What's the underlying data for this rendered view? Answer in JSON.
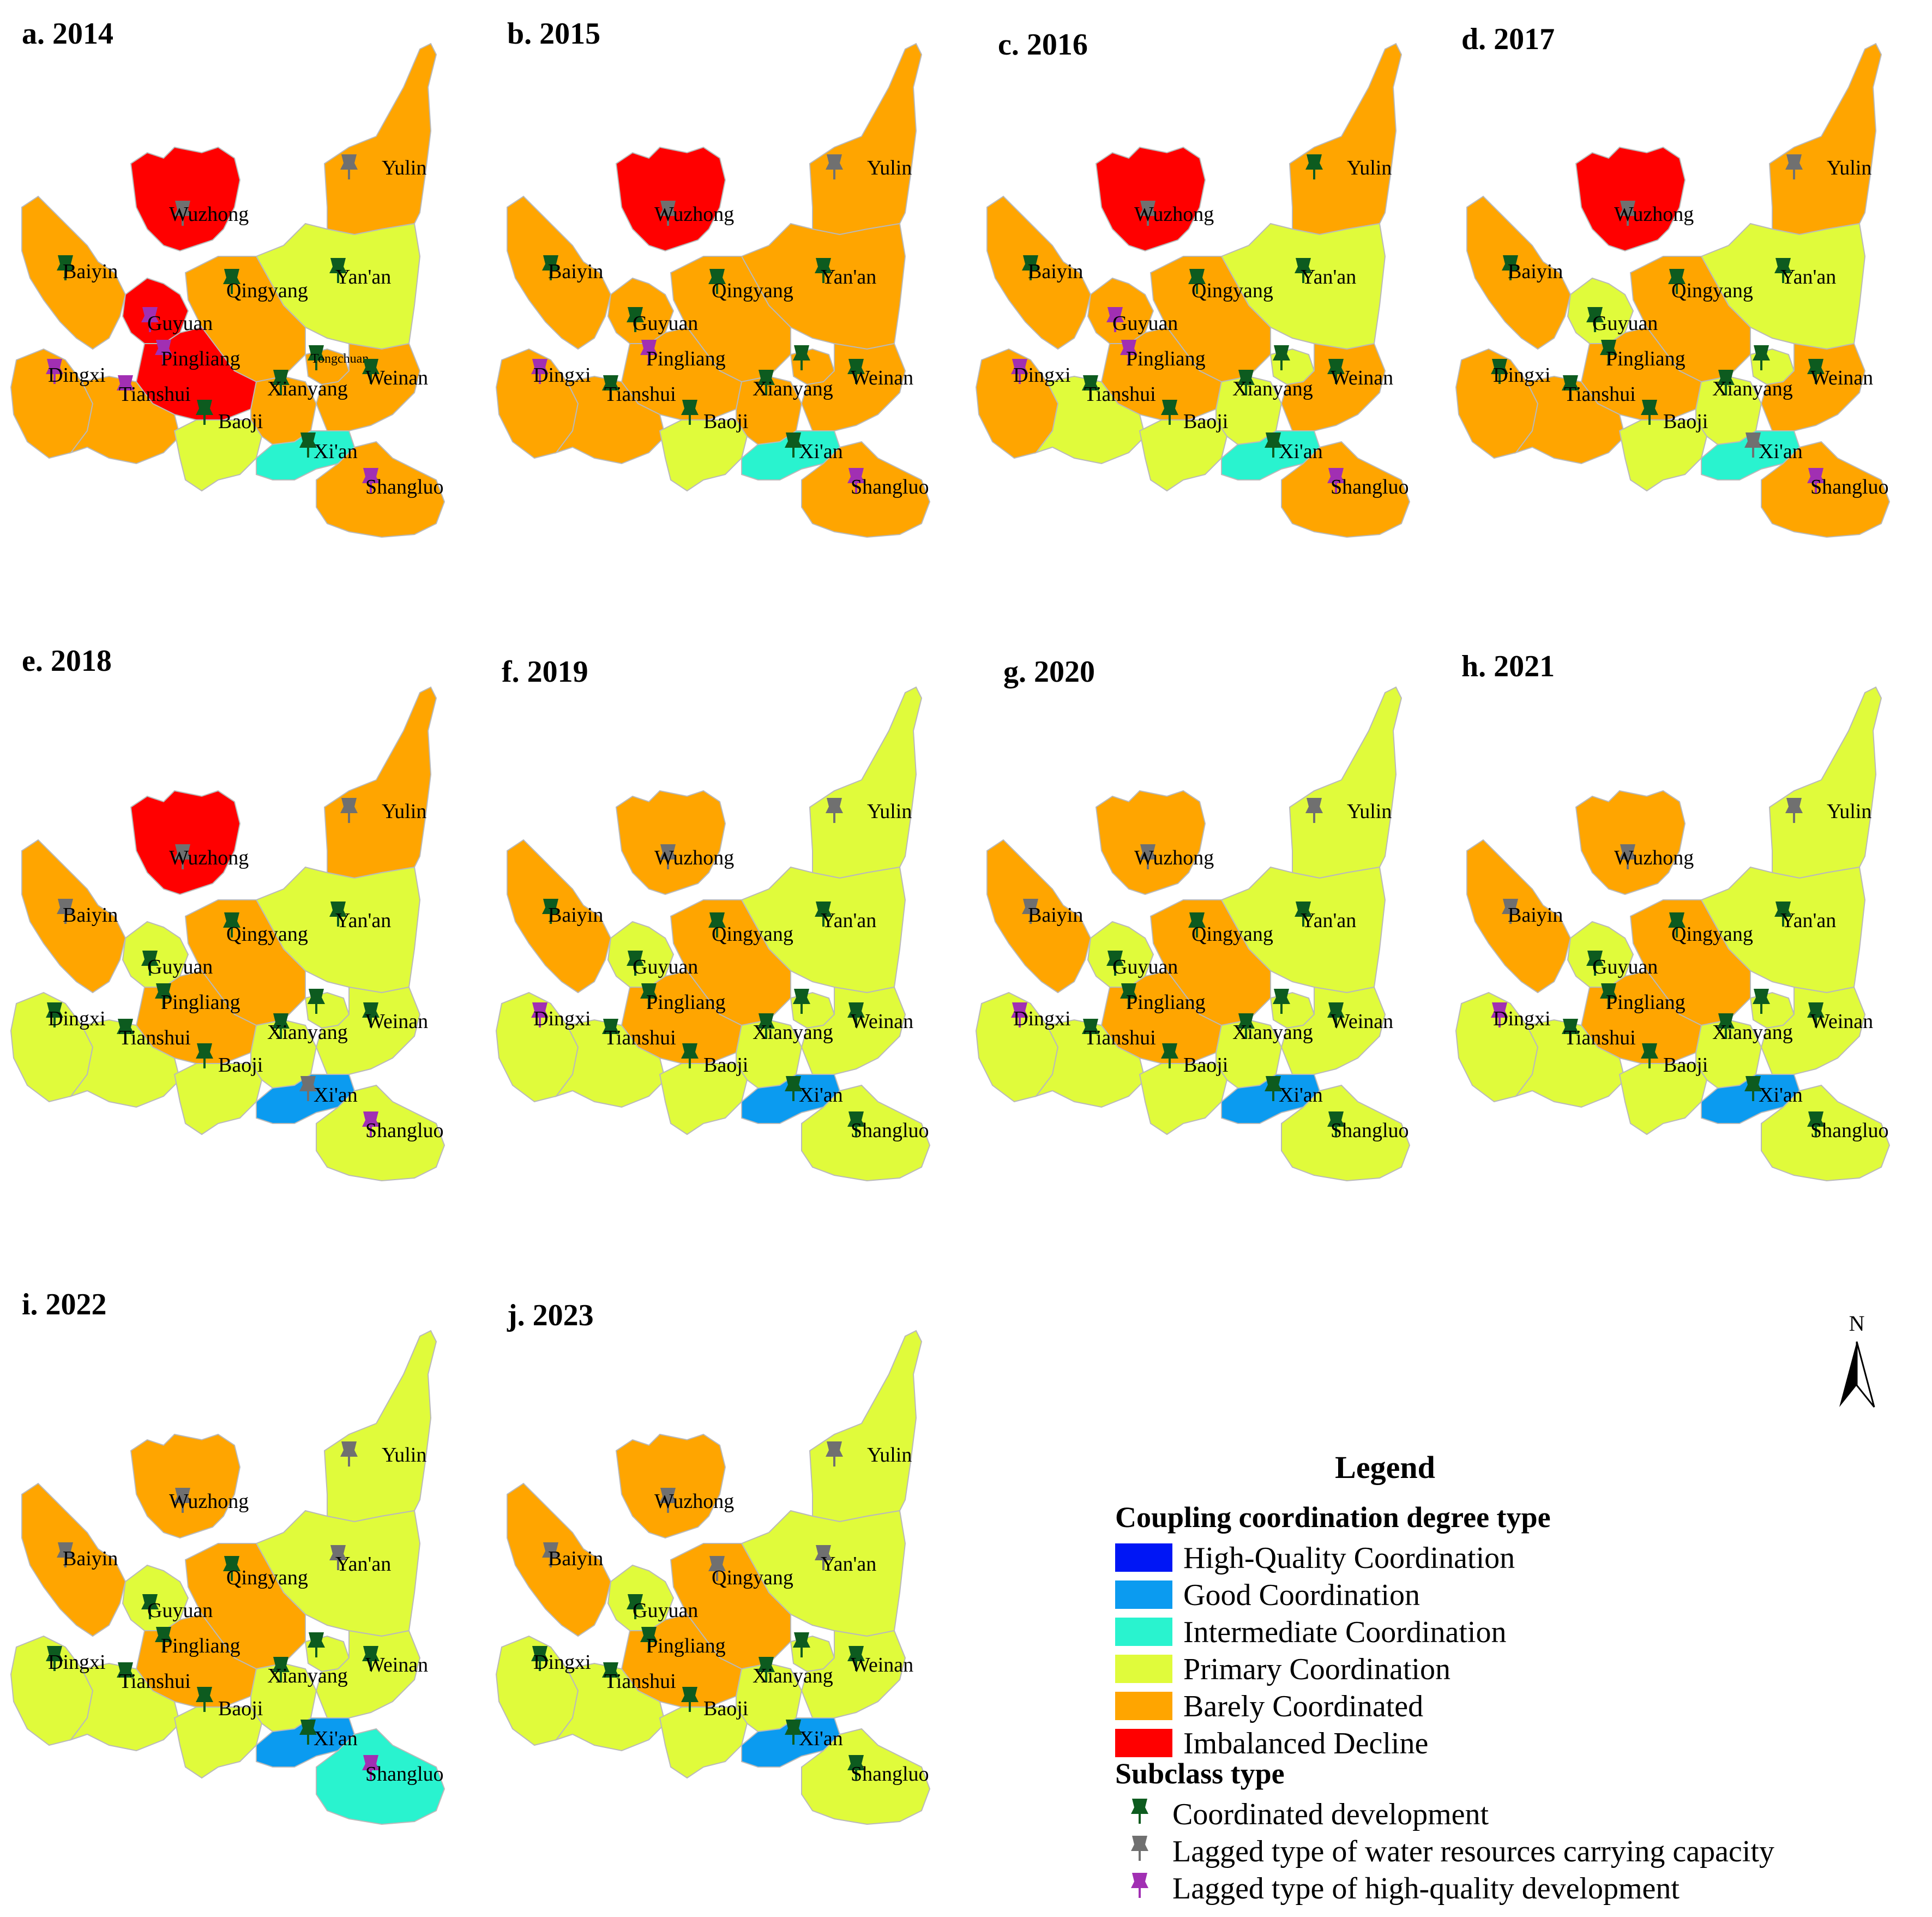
{
  "colors": {
    "imbalanced_decline": "#ff0000",
    "barely_coordinated": "#ffa500",
    "primary_coordination": "#e0fb3b",
    "intermediate_coordination": "#29f3cf",
    "good_coordination": "#0b9bf0",
    "high_quality_coordination": "#0016f5",
    "marker_coordinated": "#0d5b1f",
    "marker_water_lag": "#707070",
    "marker_hq_lag": "#a12fb3"
  },
  "panels": [
    {
      "id": "a",
      "title": "a. 2014",
      "fills": {
        "wuzhong": "imbalanced_decline",
        "yulin": "barely_coordinated",
        "yanan": "primary_coordination",
        "baiyin": "barely_coordinated",
        "qingyang": "barely_coordinated",
        "guyuan": "imbalanced_decline",
        "pingliang": "imbalanced_decline",
        "dingxi": "barely_coordinated",
        "tianshui": "barely_coordinated",
        "baoji": "primary_coordination",
        "xianyang": "barely_coordinated",
        "weinan": "barely_coordinated",
        "tongchuan": "barely_coordinated",
        "xian": "intermediate_coordination",
        "shangluo": "barely_coordinated"
      },
      "markers": {
        "yulin": "water",
        "wuzhong": "water",
        "baiyin": "coord",
        "qingyang": "coord",
        "yanan": "coord",
        "guyuan": "hq",
        "pingliang": "hq",
        "dingxi": "hq",
        "tianshui": "hq",
        "baoji": "coord",
        "xianyang": "coord",
        "tongchuan": "coord",
        "weinan": "coord",
        "xian": "coord",
        "shangluo": "hq"
      }
    },
    {
      "id": "b",
      "title": "b. 2015",
      "fills": {
        "wuzhong": "imbalanced_decline",
        "yulin": "barely_coordinated",
        "yanan": "barely_coordinated",
        "baiyin": "barely_coordinated",
        "qingyang": "barely_coordinated",
        "guyuan": "barely_coordinated",
        "pingliang": "barely_coordinated",
        "dingxi": "barely_coordinated",
        "tianshui": "barely_coordinated",
        "baoji": "primary_coordination",
        "xianyang": "barely_coordinated",
        "weinan": "barely_coordinated",
        "tongchuan": "barely_coordinated",
        "xian": "intermediate_coordination",
        "shangluo": "barely_coordinated"
      },
      "markers": {
        "yulin": "water",
        "wuzhong": "water",
        "baiyin": "coord",
        "qingyang": "coord",
        "yanan": "coord",
        "guyuan": "coord",
        "pingliang": "hq",
        "dingxi": "hq",
        "tianshui": "coord",
        "baoji": "coord",
        "xianyang": "coord",
        "tongchuan": "coord",
        "weinan": "coord",
        "xian": "coord",
        "shangluo": "hq"
      }
    },
    {
      "id": "c",
      "title": "c. 2016",
      "fills": {
        "wuzhong": "imbalanced_decline",
        "yulin": "barely_coordinated",
        "yanan": "primary_coordination",
        "baiyin": "barely_coordinated",
        "qingyang": "barely_coordinated",
        "guyuan": "barely_coordinated",
        "pingliang": "barely_coordinated",
        "dingxi": "barely_coordinated",
        "tianshui": "primary_coordination",
        "baoji": "primary_coordination",
        "xianyang": "primary_coordination",
        "weinan": "barely_coordinated",
        "tongchuan": "primary_coordination",
        "xian": "intermediate_coordination",
        "shangluo": "barely_coordinated"
      },
      "markers": {
        "yulin": "coord",
        "wuzhong": "water",
        "baiyin": "coord",
        "qingyang": "coord",
        "yanan": "coord",
        "guyuan": "hq",
        "pingliang": "hq",
        "dingxi": "hq",
        "tianshui": "coord",
        "baoji": "coord",
        "xianyang": "coord",
        "tongchuan": "coord",
        "weinan": "coord",
        "xian": "coord",
        "shangluo": "hq"
      }
    },
    {
      "id": "d",
      "title": "d. 2017",
      "fills": {
        "wuzhong": "imbalanced_decline",
        "yulin": "barely_coordinated",
        "yanan": "primary_coordination",
        "baiyin": "barely_coordinated",
        "qingyang": "barely_coordinated",
        "guyuan": "primary_coordination",
        "pingliang": "barely_coordinated",
        "dingxi": "barely_coordinated",
        "tianshui": "barely_coordinated",
        "baoji": "primary_coordination",
        "xianyang": "primary_coordination",
        "weinan": "barely_coordinated",
        "tongchuan": "primary_coordination",
        "xian": "intermediate_coordination",
        "shangluo": "barely_coordinated"
      },
      "markers": {
        "yulin": "water",
        "wuzhong": "water",
        "baiyin": "coord",
        "qingyang": "coord",
        "yanan": "coord",
        "guyuan": "coord",
        "pingliang": "coord",
        "dingxi": "coord",
        "tianshui": "coord",
        "baoji": "coord",
        "xianyang": "coord",
        "tongchuan": "coord",
        "weinan": "coord",
        "xian": "water",
        "shangluo": "hq"
      }
    },
    {
      "id": "e",
      "title": "e. 2018",
      "fills": {
        "wuzhong": "imbalanced_decline",
        "yulin": "barely_coordinated",
        "yanan": "primary_coordination",
        "baiyin": "barely_coordinated",
        "qingyang": "barely_coordinated",
        "guyuan": "primary_coordination",
        "pingliang": "barely_coordinated",
        "dingxi": "primary_coordination",
        "tianshui": "primary_coordination",
        "baoji": "primary_coordination",
        "xianyang": "primary_coordination",
        "weinan": "primary_coordination",
        "tongchuan": "primary_coordination",
        "xian": "good_coordination",
        "shangluo": "primary_coordination"
      },
      "markers": {
        "yulin": "water",
        "wuzhong": "water",
        "baiyin": "water",
        "qingyang": "coord",
        "yanan": "coord",
        "guyuan": "coord",
        "pingliang": "coord",
        "dingxi": "coord",
        "tianshui": "coord",
        "baoji": "coord",
        "xianyang": "coord",
        "tongchuan": "coord",
        "weinan": "coord",
        "xian": "water",
        "shangluo": "hq"
      }
    },
    {
      "id": "f",
      "title": "f. 2019",
      "fills": {
        "wuzhong": "barely_coordinated",
        "yulin": "primary_coordination",
        "yanan": "primary_coordination",
        "baiyin": "barely_coordinated",
        "qingyang": "barely_coordinated",
        "guyuan": "primary_coordination",
        "pingliang": "barely_coordinated",
        "dingxi": "primary_coordination",
        "tianshui": "primary_coordination",
        "baoji": "primary_coordination",
        "xianyang": "primary_coordination",
        "weinan": "primary_coordination",
        "tongchuan": "primary_coordination",
        "xian": "good_coordination",
        "shangluo": "primary_coordination"
      },
      "markers": {
        "yulin": "water",
        "wuzhong": "water",
        "baiyin": "coord",
        "qingyang": "coord",
        "yanan": "coord",
        "guyuan": "coord",
        "pingliang": "coord",
        "dingxi": "hq",
        "tianshui": "coord",
        "baoji": "coord",
        "xianyang": "coord",
        "tongchuan": "coord",
        "weinan": "coord",
        "xian": "coord",
        "shangluo": "coord"
      }
    },
    {
      "id": "g",
      "title": "g. 2020",
      "fills": {
        "wuzhong": "barely_coordinated",
        "yulin": "primary_coordination",
        "yanan": "primary_coordination",
        "baiyin": "barely_coordinated",
        "qingyang": "barely_coordinated",
        "guyuan": "primary_coordination",
        "pingliang": "barely_coordinated",
        "dingxi": "primary_coordination",
        "tianshui": "primary_coordination",
        "baoji": "primary_coordination",
        "xianyang": "primary_coordination",
        "weinan": "primary_coordination",
        "tongchuan": "primary_coordination",
        "xian": "good_coordination",
        "shangluo": "primary_coordination"
      },
      "markers": {
        "yulin": "water",
        "wuzhong": "water",
        "baiyin": "water",
        "qingyang": "coord",
        "yanan": "coord",
        "guyuan": "coord",
        "pingliang": "coord",
        "dingxi": "hq",
        "tianshui": "coord",
        "baoji": "coord",
        "xianyang": "coord",
        "tongchuan": "coord",
        "weinan": "coord",
        "xian": "coord",
        "shangluo": "coord"
      }
    },
    {
      "id": "h",
      "title": "h. 2021",
      "fills": {
        "wuzhong": "barely_coordinated",
        "yulin": "primary_coordination",
        "yanan": "primary_coordination",
        "baiyin": "barely_coordinated",
        "qingyang": "barely_coordinated",
        "guyuan": "primary_coordination",
        "pingliang": "barely_coordinated",
        "dingxi": "primary_coordination",
        "tianshui": "primary_coordination",
        "baoji": "primary_coordination",
        "xianyang": "primary_coordination",
        "weinan": "primary_coordination",
        "tongchuan": "primary_coordination",
        "xian": "good_coordination",
        "shangluo": "primary_coordination"
      },
      "markers": {
        "yulin": "water",
        "wuzhong": "water",
        "baiyin": "water",
        "qingyang": "coord",
        "yanan": "coord",
        "guyuan": "coord",
        "pingliang": "coord",
        "dingxi": "hq",
        "tianshui": "coord",
        "baoji": "coord",
        "xianyang": "coord",
        "tongchuan": "coord",
        "weinan": "coord",
        "xian": "coord",
        "shangluo": "coord"
      }
    },
    {
      "id": "i",
      "title": "i. 2022",
      "fills": {
        "wuzhong": "barely_coordinated",
        "yulin": "primary_coordination",
        "yanan": "primary_coordination",
        "baiyin": "barely_coordinated",
        "qingyang": "barely_coordinated",
        "guyuan": "primary_coordination",
        "pingliang": "barely_coordinated",
        "dingxi": "primary_coordination",
        "tianshui": "primary_coordination",
        "baoji": "primary_coordination",
        "xianyang": "primary_coordination",
        "weinan": "primary_coordination",
        "tongchuan": "primary_coordination",
        "xian": "good_coordination",
        "shangluo": "intermediate_coordination"
      },
      "markers": {
        "yulin": "water",
        "wuzhong": "water",
        "baiyin": "water",
        "qingyang": "coord",
        "yanan": "water",
        "guyuan": "coord",
        "pingliang": "coord",
        "dingxi": "coord",
        "tianshui": "coord",
        "baoji": "coord",
        "xianyang": "coord",
        "tongchuan": "coord",
        "weinan": "coord",
        "xian": "coord",
        "shangluo": "hq"
      }
    },
    {
      "id": "j",
      "title": "j. 2023",
      "fills": {
        "wuzhong": "barely_coordinated",
        "yulin": "primary_coordination",
        "yanan": "primary_coordination",
        "baiyin": "barely_coordinated",
        "qingyang": "barely_coordinated",
        "guyuan": "primary_coordination",
        "pingliang": "barely_coordinated",
        "dingxi": "primary_coordination",
        "tianshui": "primary_coordination",
        "baoji": "primary_coordination",
        "xianyang": "primary_coordination",
        "weinan": "primary_coordination",
        "tongchuan": "primary_coordination",
        "xian": "good_coordination",
        "shangluo": "primary_coordination"
      },
      "markers": {
        "yulin": "water",
        "wuzhong": "water",
        "baiyin": "water",
        "qingyang": "water",
        "yanan": "water",
        "guyuan": "coord",
        "pingliang": "coord",
        "dingxi": "coord",
        "tianshui": "coord",
        "baoji": "coord",
        "xianyang": "coord",
        "tongchuan": "coord",
        "weinan": "coord",
        "xian": "coord",
        "shangluo": "coord"
      }
    }
  ],
  "city_labels": {
    "yulin": "Yulin",
    "wuzhong": "Wuzhong",
    "baiyin": "Baiyin",
    "qingyang": "Qingyang",
    "yanan": "Yan'an",
    "guyuan": "Guyuan",
    "pingliang": "Pingliang",
    "dingxi": "Dingxi",
    "tianshui": "Tianshui",
    "baoji": "Baoji",
    "xianyang": "Xianyang",
    "weinan": "Weinan",
    "xian": "Xi'an",
    "shangluo": "Shangluo",
    "tongchuan": "Tongchuan"
  },
  "legend": {
    "title": "Legend",
    "coupling_heading": "Coupling coordination degree type",
    "coupling_items": [
      {
        "key": "high_quality_coordination",
        "label": "High-Quality Coordination"
      },
      {
        "key": "good_coordination",
        "label": "Good Coordination"
      },
      {
        "key": "intermediate_coordination",
        "label": "Intermediate Coordination"
      },
      {
        "key": "primary_coordination",
        "label": "Primary Coordination"
      },
      {
        "key": "barely_coordinated",
        "label": "Barely Coordinated"
      },
      {
        "key": "imbalanced_decline",
        "label": "Imbalanced Decline"
      }
    ],
    "subclass_heading": "Subclass type",
    "subclass_items": [
      {
        "key": "coord",
        "label": "Coordinated development"
      },
      {
        "key": "water",
        "label": "Lagged type of water resources carrying capacity"
      },
      {
        "key": "hq",
        "label": "Lagged type of high-quality development"
      }
    ]
  },
  "north_arrow": {
    "label": "N"
  }
}
